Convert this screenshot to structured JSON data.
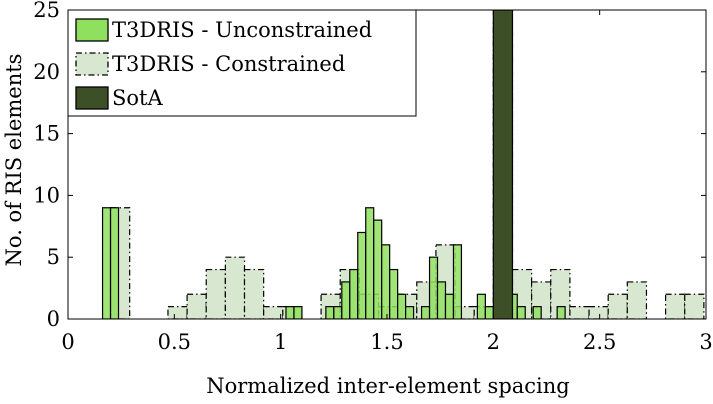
{
  "chart_data": {
    "type": "bar",
    "xlabel": "Normalized inter-element spacing",
    "ylabel": "No. of RIS elements",
    "xlim": [
      0,
      3
    ],
    "ylim": [
      0,
      25
    ],
    "xticks": [
      "0",
      "0.5",
      "1",
      "1.5",
      "2",
      "2.5",
      "3"
    ],
    "yticks": [
      "0",
      "5",
      "10",
      "15",
      "20",
      "25"
    ],
    "legend_position": "top-left",
    "grid": false,
    "series": [
      {
        "name": "T3DRIS - Unconstrained",
        "style": "solid",
        "color": "#90e060",
        "edge": "#000000",
        "bin_width": 0.0375,
        "bins": [
          [
            0.1625,
            9
          ],
          [
            0.2,
            9
          ],
          [
            1.025,
            1
          ],
          [
            1.0625,
            1
          ],
          [
            1.2125,
            1
          ],
          [
            1.25,
            1
          ],
          [
            1.2875,
            3
          ],
          [
            1.325,
            4
          ],
          [
            1.3625,
            7
          ],
          [
            1.4,
            9
          ],
          [
            1.4375,
            8
          ],
          [
            1.475,
            6
          ],
          [
            1.5125,
            4
          ],
          [
            1.55,
            2
          ],
          [
            1.5875,
            1
          ],
          [
            1.6625,
            1
          ],
          [
            1.7,
            5
          ],
          [
            1.7375,
            3
          ],
          [
            1.775,
            2
          ],
          [
            1.8125,
            6
          ],
          [
            1.925,
            2
          ],
          [
            1.9625,
            1
          ],
          [
            2.075,
            2
          ],
          [
            2.1125,
            1
          ],
          [
            2.1875,
            1
          ],
          [
            2.3,
            1
          ]
        ]
      },
      {
        "name": "T3DRIS - Constrained",
        "style": "dash-dot",
        "color": "#d8e8d0",
        "edge": "#000000",
        "bin_width": 0.09,
        "bins": [
          [
            0.2,
            9
          ],
          [
            0.29,
            0
          ],
          [
            0.38,
            0
          ],
          [
            0.47,
            1
          ],
          [
            0.56,
            2
          ],
          [
            0.65,
            4
          ],
          [
            0.74,
            5
          ],
          [
            0.83,
            4
          ],
          [
            0.92,
            1
          ],
          [
            1.01,
            1
          ],
          [
            1.1,
            0
          ],
          [
            1.19,
            2
          ],
          [
            1.28,
            4
          ],
          [
            1.37,
            2
          ],
          [
            1.46,
            1
          ],
          [
            1.55,
            2
          ],
          [
            1.64,
            3
          ],
          [
            1.73,
            6
          ],
          [
            1.82,
            1
          ],
          [
            1.91,
            1
          ],
          [
            2.0,
            24
          ],
          [
            2.09,
            4
          ],
          [
            2.18,
            3
          ],
          [
            2.27,
            4
          ],
          [
            2.36,
            1
          ],
          [
            2.45,
            1
          ],
          [
            2.54,
            2
          ],
          [
            2.63,
            3
          ],
          [
            2.72,
            0
          ],
          [
            2.81,
            2
          ],
          [
            2.9,
            2
          ]
        ]
      },
      {
        "name": "SotA",
        "style": "solid",
        "color": "#3d4f26",
        "edge": "#000000",
        "bin_width": 0.09,
        "bins": [
          [
            2.0,
            25
          ]
        ]
      }
    ]
  }
}
